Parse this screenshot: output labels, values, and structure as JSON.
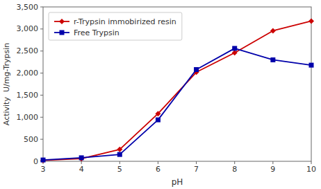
{
  "chart_data": {
    "type": "line",
    "xlabel": "pH",
    "ylabel": "Activity  U/mg-Trypsin",
    "x": [
      3,
      4,
      5,
      6,
      7,
      8,
      9,
      10
    ],
    "series": [
      {
        "name": "r-Trypsin immobirized resin",
        "color": "#cc0000",
        "marker": "diamond",
        "values": [
          20,
          60,
          270,
          1080,
          2020,
          2460,
          2960,
          3180
        ]
      },
      {
        "name": "Free Trypsin",
        "color": "#0000aa",
        "marker": "square",
        "values": [
          30,
          80,
          155,
          940,
          2080,
          2560,
          2300,
          2180
        ]
      }
    ],
    "xlim": [
      3,
      10
    ],
    "ylim": [
      0,
      3500
    ],
    "xticks": [
      3,
      4,
      5,
      6,
      7,
      8,
      9,
      10
    ],
    "yticks": [
      0,
      500,
      {
        "value": 1000,
        "label": "1,000"
      },
      {
        "value": 1500,
        "label": "1,500"
      },
      {
        "value": 2000,
        "label": "2,000"
      },
      {
        "value": 2500,
        "label": "2,500"
      },
      {
        "value": 3000,
        "label": "3,000"
      },
      {
        "value": 3500,
        "label": "3,500"
      }
    ],
    "grid": false,
    "legend": "upper left"
  }
}
